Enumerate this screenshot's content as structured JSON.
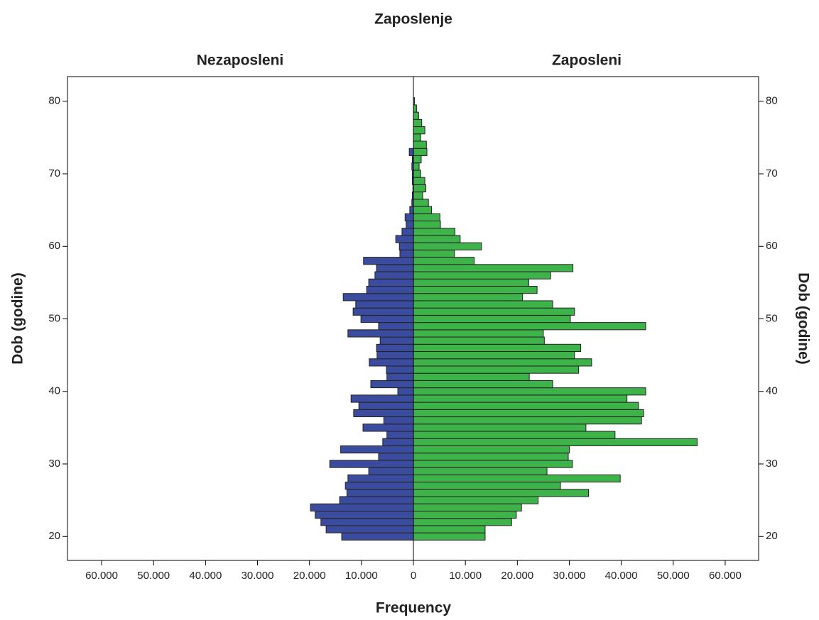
{
  "chart_data": {
    "type": "pyramid",
    "title": "Zaposlenje",
    "xlabel": "Frequency",
    "ylabel": "Dob (godine)",
    "y": [
      20,
      21,
      22,
      23,
      24,
      25,
      26,
      27,
      28,
      29,
      30,
      31,
      32,
      33,
      34,
      35,
      36,
      37,
      38,
      39,
      40,
      41,
      42,
      43,
      44,
      45,
      46,
      47,
      48,
      49,
      50,
      51,
      52,
      53,
      54,
      55,
      56,
      57,
      58,
      59,
      60,
      61,
      62,
      63,
      64,
      65,
      66,
      67,
      68,
      69,
      70,
      71,
      72,
      73,
      74,
      75,
      76,
      77,
      78,
      79,
      80
    ],
    "series": [
      {
        "name": "Nezaposleni",
        "color": "#3b4b9e",
        "side": "left",
        "values": [
          13800,
          16800,
          17800,
          18900,
          19800,
          14200,
          12800,
          13100,
          12600,
          8600,
          16100,
          6700,
          14000,
          5900,
          5100,
          9700,
          5700,
          11500,
          10500,
          12000,
          3000,
          8200,
          5100,
          5200,
          8500,
          7000,
          7100,
          6400,
          12600,
          6700,
          10100,
          11600,
          11100,
          13500,
          9000,
          8600,
          7400,
          7100,
          9600,
          2600,
          2700,
          3400,
          2200,
          1400,
          1600,
          700,
          300,
          200,
          100,
          200,
          200,
          300,
          200,
          800,
          0,
          0,
          0,
          0,
          0,
          0,
          0
        ]
      },
      {
        "name": "Zaposleni",
        "color": "#3db34a",
        "side": "right",
        "values": [
          13800,
          13800,
          18900,
          19800,
          20800,
          24000,
          33700,
          28300,
          39800,
          25700,
          30600,
          29800,
          30000,
          54600,
          38800,
          33200,
          43900,
          44300,
          43300,
          41100,
          44700,
          26800,
          22300,
          31800,
          34300,
          31000,
          32200,
          25200,
          25000,
          44700,
          30200,
          31000,
          26800,
          21000,
          23800,
          22200,
          26400,
          30700,
          11700,
          7900,
          13100,
          9000,
          8000,
          5200,
          5100,
          3500,
          2900,
          1800,
          2400,
          2200,
          1400,
          1100,
          1500,
          2600,
          2500,
          1400,
          2200,
          1600,
          1000,
          600,
          200
        ]
      }
    ],
    "xlim": [
      0,
      66500
    ],
    "xticks": [
      0,
      {
        "value": 10000,
        "label": "10.000"
      },
      {
        "value": 20000,
        "label": "20.000"
      },
      {
        "value": 30000,
        "label": "30.000"
      },
      {
        "value": 40000,
        "label": "40.000"
      },
      {
        "value": 50000,
        "label": "50.000"
      },
      {
        "value": 60000,
        "label": "60.000"
      }
    ],
    "ylim": [
      16.7,
      83.4
    ],
    "yticks": [
      20,
      30,
      40,
      50,
      60,
      70,
      80
    ]
  }
}
